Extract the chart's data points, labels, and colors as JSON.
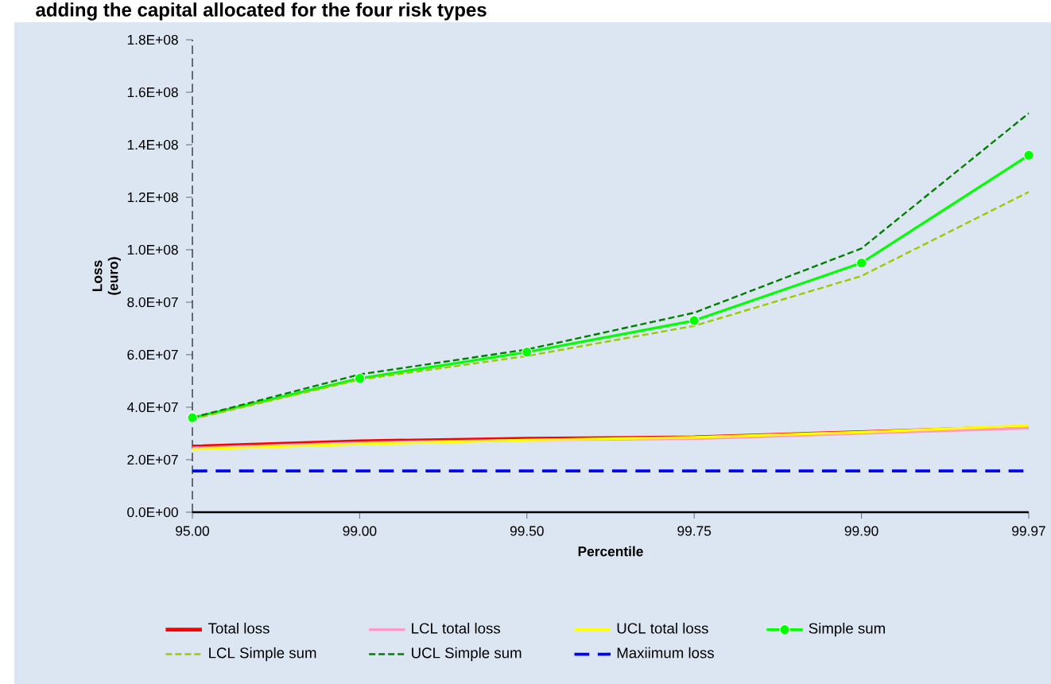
{
  "chart_data": {
    "type": "line",
    "title": "adding the capital allocated for the four risk types",
    "xlabel": "Percentile",
    "ylabel": "Loss (euro)",
    "categories": [
      "95.00",
      "99.00",
      "99.50",
      "99.75",
      "99.90",
      "99.97"
    ],
    "ylim": [
      0,
      180000000
    ],
    "yticks": [
      {
        "value": 0,
        "label": "0.0E+00"
      },
      {
        "value": 20000000,
        "label": "2.0E+07"
      },
      {
        "value": 40000000,
        "label": "4.0E+07"
      },
      {
        "value": 60000000,
        "label": "6.0E+07"
      },
      {
        "value": 80000000,
        "label": "8.0E+07"
      },
      {
        "value": 100000000,
        "label": "1.0E+08"
      },
      {
        "value": 120000000,
        "label": "1.2E+08"
      },
      {
        "value": 140000000,
        "label": "1.4E+08"
      },
      {
        "value": 160000000,
        "label": "1.6E+08"
      },
      {
        "value": 180000000,
        "label": "1.8E+08"
      }
    ],
    "legend": "bottom",
    "grid": false,
    "series": [
      {
        "name": "Total loss",
        "color": "#ff0000",
        "line_style": "solid",
        "marker": "none",
        "values": [
          25000000,
          27000000,
          28000000,
          28500000,
          30500000,
          32500000
        ]
      },
      {
        "name": "LCL total loss",
        "color": "#ff99cc",
        "line_style": "solid",
        "marker": "none",
        "values": [
          24500000,
          26500000,
          27500000,
          28000000,
          30000000,
          32000000
        ]
      },
      {
        "name": "UCL total loss",
        "color": "#ffff00",
        "line_style": "solid",
        "marker": "none",
        "values": [
          24000000,
          26000000,
          27500000,
          28500000,
          30500000,
          33000000
        ]
      },
      {
        "name": "Simple sum",
        "color": "#00ff00",
        "line_style": "solid",
        "marker": "circle",
        "values": [
          36000000,
          51000000,
          61000000,
          73000000,
          95000000,
          136000000
        ]
      },
      {
        "name": "LCL Simple sum",
        "color": "#99cc00",
        "line_style": "dashed",
        "marker": "none",
        "values": [
          35500000,
          50500000,
          59500000,
          71000000,
          90000000,
          122000000
        ]
      },
      {
        "name": "UCL Simple sum",
        "color": "#008000",
        "line_style": "dashed",
        "marker": "none",
        "values": [
          36000000,
          52500000,
          62000000,
          76000000,
          100500000,
          152000000
        ]
      },
      {
        "name": "Maxiimum loss",
        "color": "#0000ff",
        "line_style": "dashed",
        "marker": "none",
        "values": [
          15700000,
          15700000,
          15700000,
          15700000,
          15700000,
          15700000
        ]
      }
    ]
  }
}
